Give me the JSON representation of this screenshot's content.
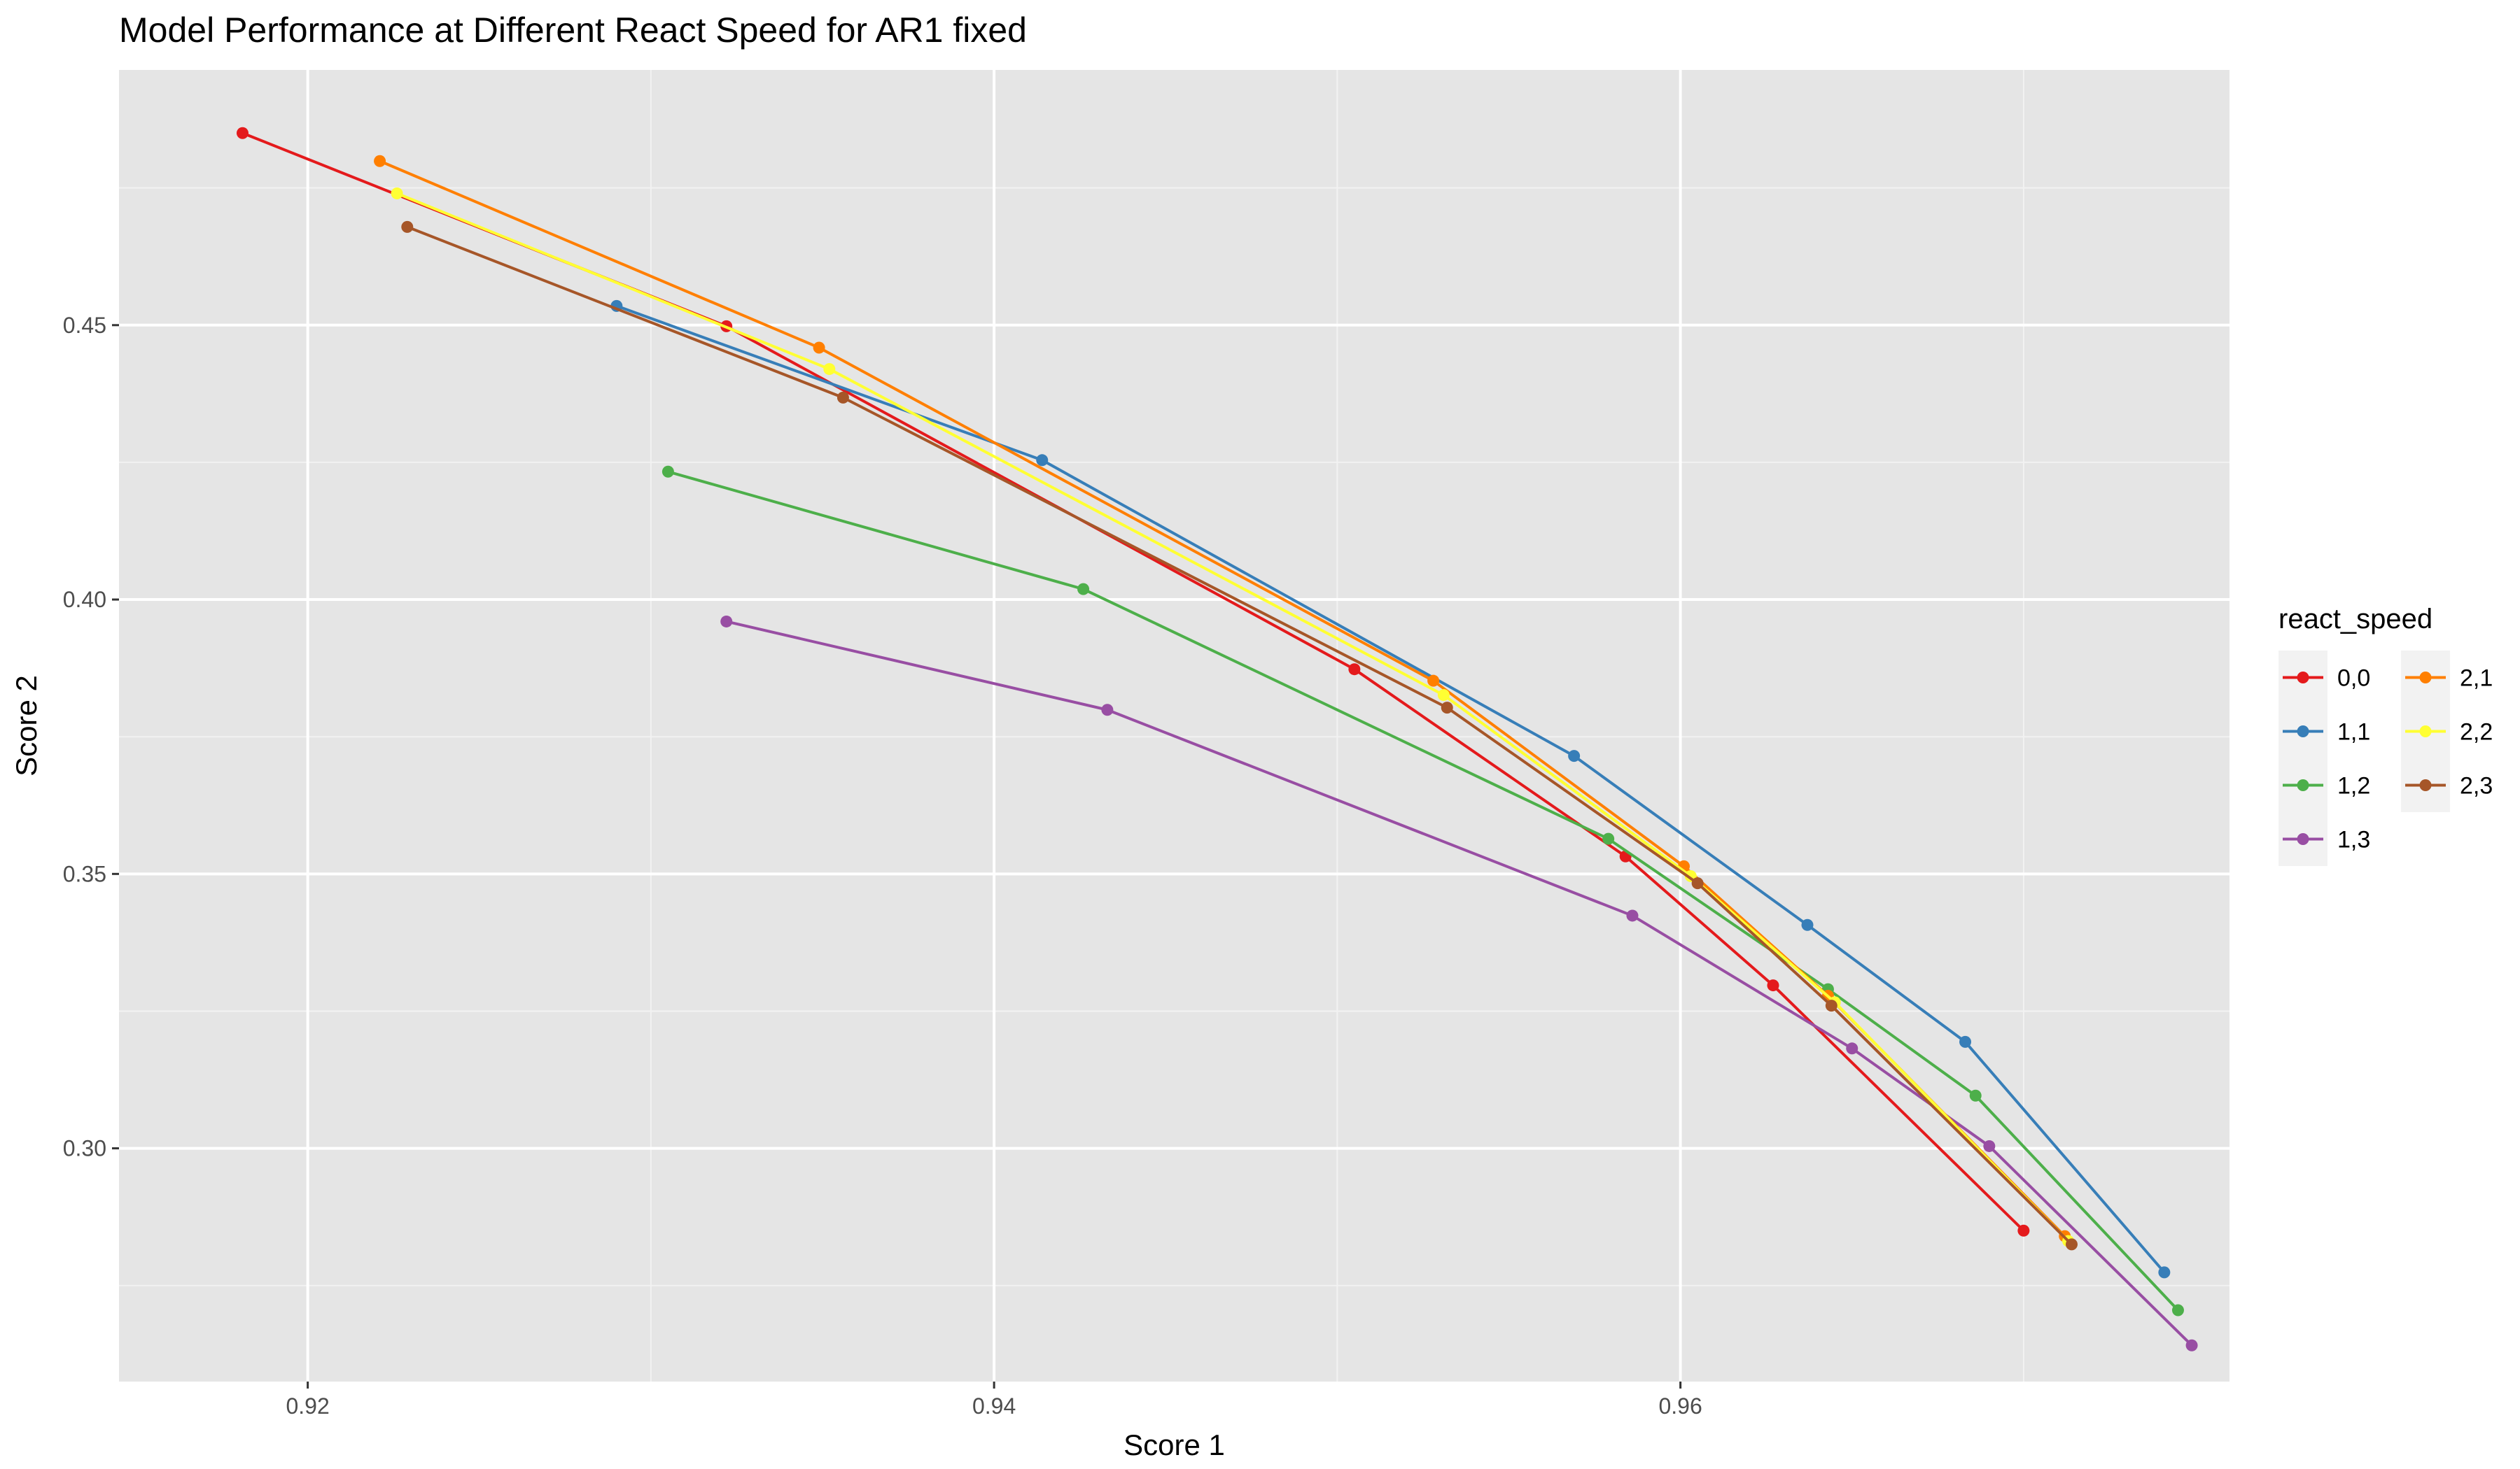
{
  "chart_data": {
    "type": "line",
    "title": "Model Performance at Different React Speed for AR1 fixed",
    "xlabel": "Score 1",
    "ylabel": "Score 2",
    "xlim": [
      0.9145,
      0.976
    ],
    "ylim": [
      0.2575,
      0.4965
    ],
    "x_ticks": [
      0.92,
      0.94,
      0.96
    ],
    "x_tick_labels": [
      "0.92",
      "0.94",
      "0.96"
    ],
    "y_ticks": [
      0.3,
      0.35,
      0.4,
      0.45
    ],
    "y_tick_labels": [
      "0.30",
      "0.35",
      "0.40",
      "0.45"
    ],
    "grid": true,
    "legend": {
      "title": "react_speed",
      "placement": "right"
    },
    "series": [
      {
        "name": "0,0",
        "color": "#E41A1C",
        "x": [
          0.9181,
          0.9322,
          0.9505,
          0.9584,
          0.9627,
          0.97
        ],
        "y": [
          0.485,
          0.4498,
          0.3873,
          0.3532,
          0.3297,
          0.285
        ]
      },
      {
        "name": "1,1",
        "color": "#377EB8",
        "x": [
          0.929,
          0.9414,
          0.9569,
          0.9637,
          0.9683,
          0.9741
        ],
        "y": [
          0.4535,
          0.4254,
          0.3715,
          0.3407,
          0.3194,
          0.2774
        ]
      },
      {
        "name": "1,2",
        "color": "#4DAF4A",
        "x": [
          0.9305,
          0.9426,
          0.9579,
          0.9643,
          0.9686,
          0.9745
        ],
        "y": [
          0.4233,
          0.4019,
          0.3564,
          0.329,
          0.3096,
          0.2705
        ]
      },
      {
        "name": "1,3",
        "color": "#984EA3",
        "x": [
          0.9322,
          0.9433,
          0.9586,
          0.965,
          0.969,
          0.9749
        ],
        "y": [
          0.396,
          0.3799,
          0.3424,
          0.3182,
          0.3004,
          0.2641
        ]
      },
      {
        "name": "2,1",
        "color": "#FF7F00",
        "x": [
          0.9221,
          0.9349,
          0.9528,
          0.9601,
          0.9643,
          0.9712
        ],
        "y": [
          0.4799,
          0.4459,
          0.3852,
          0.3514,
          0.3278,
          0.284
        ]
      },
      {
        "name": "2,2",
        "color": "#FFFF33",
        "x": [
          0.9226,
          0.9352,
          0.9531,
          0.9603,
          0.9645,
          0.9713
        ],
        "y": [
          0.474,
          0.442,
          0.3826,
          0.3496,
          0.3266,
          0.2831
        ]
      },
      {
        "name": "2,3",
        "color": "#A65628",
        "x": [
          0.9229,
          0.9356,
          0.9532,
          0.9605,
          0.9644,
          0.9714
        ],
        "y": [
          0.4679,
          0.4368,
          0.3803,
          0.3483,
          0.326,
          0.2825
        ]
      }
    ]
  }
}
